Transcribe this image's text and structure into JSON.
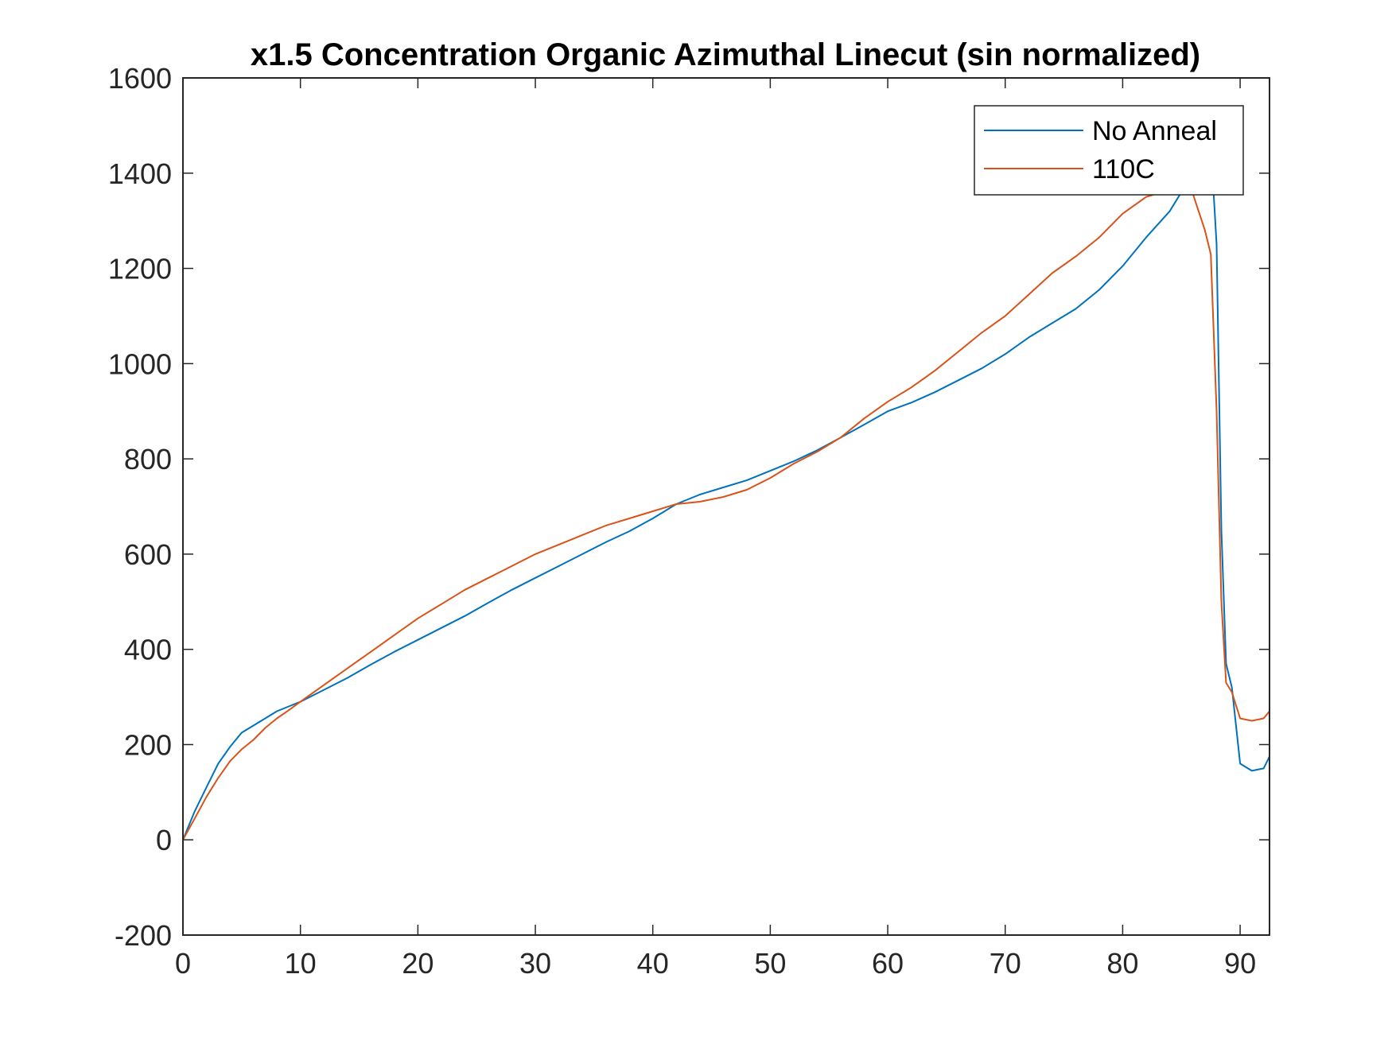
{
  "chart_data": {
    "type": "line",
    "title": "x1.5 Concentration Organic Azimuthal Linecut (sin normalized)",
    "xlabel": "",
    "ylabel": "",
    "xlim": [
      0,
      92.5
    ],
    "ylim": [
      -200,
      1600
    ],
    "xticks": [
      0,
      10,
      20,
      30,
      40,
      50,
      60,
      70,
      80,
      90
    ],
    "yticks": [
      -200,
      0,
      200,
      400,
      600,
      800,
      1000,
      1200,
      1400,
      1600
    ],
    "grid": false,
    "legend_position": "top-right",
    "series": [
      {
        "name": "No Anneal",
        "color": "#0072BD",
        "x": [
          0,
          1,
          2,
          3,
          4,
          5,
          6,
          7,
          8,
          9,
          10,
          12,
          14,
          16,
          18,
          20,
          22,
          24,
          26,
          28,
          30,
          32,
          34,
          36,
          38,
          40,
          42,
          44,
          46,
          48,
          50,
          52,
          54,
          56,
          58,
          60,
          62,
          64,
          66,
          68,
          70,
          72,
          74,
          76,
          78,
          80,
          82,
          84,
          85,
          86,
          87,
          87.6,
          88,
          88.4,
          88.8,
          89.3,
          90,
          91,
          92,
          92.5
        ],
        "y": [
          0,
          60,
          110,
          160,
          195,
          225,
          240,
          255,
          270,
          280,
          290,
          315,
          340,
          368,
          395,
          420,
          445,
          470,
          498,
          525,
          550,
          575,
          600,
          625,
          648,
          675,
          705,
          725,
          740,
          755,
          775,
          795,
          818,
          845,
          872,
          900,
          918,
          940,
          965,
          990,
          1020,
          1055,
          1085,
          1115,
          1155,
          1205,
          1265,
          1320,
          1360,
          1385,
          1410,
          1420,
          1250,
          650,
          370,
          320,
          160,
          145,
          150,
          175
        ]
      },
      {
        "name": "110C",
        "color": "#D95319",
        "x": [
          0,
          1,
          2,
          3,
          4,
          5,
          6,
          7,
          8,
          9,
          10,
          12,
          14,
          16,
          18,
          20,
          22,
          24,
          26,
          28,
          30,
          32,
          34,
          36,
          38,
          40,
          42,
          44,
          46,
          48,
          50,
          52,
          54,
          56,
          58,
          60,
          62,
          64,
          66,
          68,
          70,
          72,
          74,
          76,
          78,
          80,
          82,
          84,
          85,
          86,
          87,
          87.5,
          88,
          88.4,
          88.8,
          89.3,
          90,
          91,
          92,
          92.5
        ],
        "y": [
          0,
          45,
          90,
          130,
          165,
          190,
          210,
          235,
          255,
          272,
          290,
          325,
          360,
          395,
          430,
          465,
          495,
          525,
          550,
          575,
          600,
          620,
          640,
          660,
          675,
          690,
          705,
          710,
          720,
          735,
          760,
          790,
          815,
          845,
          885,
          920,
          950,
          985,
          1025,
          1065,
          1100,
          1145,
          1190,
          1225,
          1265,
          1315,
          1350,
          1365,
          1370,
          1355,
          1280,
          1230,
          900,
          500,
          330,
          310,
          255,
          250,
          255,
          270
        ]
      }
    ]
  }
}
